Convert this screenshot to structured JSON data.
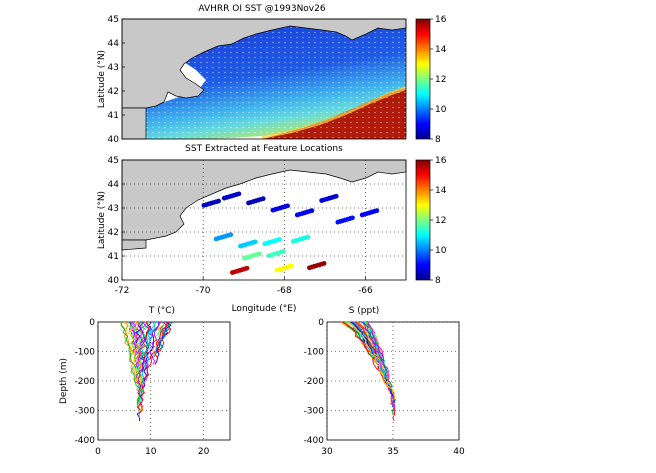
{
  "figure": {
    "top_title": "AVHRR OI SST @1993Nov26",
    "mid_title": "SST Extracted at Feature Locations",
    "colorbar_ticks": [
      "16",
      "14",
      "12",
      "10",
      "8"
    ],
    "colorbar_ticks2": [
      "16",
      "14",
      "12",
      "10",
      "8"
    ]
  },
  "chart_data": [
    {
      "type": "heatmap",
      "title": "AVHRR OI SST @1993Nov26",
      "xlabel": "",
      "ylabel": "Latitude (°N)",
      "ylim": [
        40,
        45
      ],
      "xlim": [
        -72,
        -65
      ],
      "yticks": [
        "45",
        "44",
        "43",
        "42",
        "41",
        "40"
      ],
      "colorbar": {
        "min": 8,
        "max": 16,
        "ticks": [
          16,
          14,
          12,
          10,
          8
        ]
      },
      "description_values": {
        "cold_gulf_of_maine": 9,
        "shelf_front": 12,
        "gulf_stream_slope": 16
      }
    },
    {
      "type": "scatter",
      "title": "SST Extracted at Feature Locations",
      "xlabel": "Longitude (°E)",
      "ylabel": "Latitude (°N)",
      "xlim": [
        -72,
        -65
      ],
      "ylim": [
        40,
        45
      ],
      "xticks": [
        "-72",
        "-70",
        "-68",
        "-66"
      ],
      "yticks": [
        "45",
        "44",
        "43",
        "42",
        "41",
        "40"
      ],
      "colorbar": {
        "min": 8,
        "max": 16,
        "ticks": [
          16,
          14,
          12,
          10,
          8
        ]
      },
      "points": [
        {
          "lon": -69.8,
          "lat": 43.2,
          "sst": 8.5
        },
        {
          "lon": -69.3,
          "lat": 43.5,
          "sst": 8.6
        },
        {
          "lon": -68.7,
          "lat": 43.3,
          "sst": 8.4
        },
        {
          "lon": -68.1,
          "lat": 43.0,
          "sst": 8.8
        },
        {
          "lon": -67.5,
          "lat": 42.8,
          "sst": 8.9
        },
        {
          "lon": -66.9,
          "lat": 43.4,
          "sst": 8.7
        },
        {
          "lon": -66.5,
          "lat": 42.5,
          "sst": 9.1
        },
        {
          "lon": -65.9,
          "lat": 42.8,
          "sst": 9.0
        },
        {
          "lon": -69.5,
          "lat": 41.8,
          "sst": 10.2
        },
        {
          "lon": -68.9,
          "lat": 41.5,
          "sst": 10.6
        },
        {
          "lon": -68.3,
          "lat": 41.6,
          "sst": 11.0
        },
        {
          "lon": -67.6,
          "lat": 41.7,
          "sst": 11.2
        },
        {
          "lon": -68.8,
          "lat": 41.0,
          "sst": 11.8
        },
        {
          "lon": -68.2,
          "lat": 41.1,
          "sst": 11.5
        },
        {
          "lon": -69.1,
          "lat": 40.4,
          "sst": 15.5
        },
        {
          "lon": -67.2,
          "lat": 40.6,
          "sst": 15.8
        },
        {
          "lon": -68.0,
          "lat": 40.5,
          "sst": 13.0
        }
      ]
    },
    {
      "type": "line",
      "title": "T (°C)",
      "xlabel": "",
      "ylabel": "Depth (m)",
      "xlim": [
        0,
        25
      ],
      "ylim": [
        -400,
        0
      ],
      "xticks": [
        "0",
        "10",
        "20"
      ],
      "yticks": [
        "0",
        "-100",
        "-200",
        "-300",
        "-400"
      ],
      "profile_range": {
        "surface_min": 4,
        "surface_max": 14,
        "deep_center": 8
      }
    },
    {
      "type": "line",
      "title": "S (ppt)",
      "xlabel": "",
      "ylabel": "",
      "xlim": [
        30,
        40
      ],
      "ylim": [
        -400,
        0
      ],
      "xticks": [
        "30",
        "35",
        "40"
      ],
      "yticks": [
        "0",
        "-100",
        "-200",
        "-300",
        "-400"
      ],
      "profile_range": {
        "surface_min": 31,
        "surface_max": 33,
        "deep_center": 35
      }
    }
  ]
}
